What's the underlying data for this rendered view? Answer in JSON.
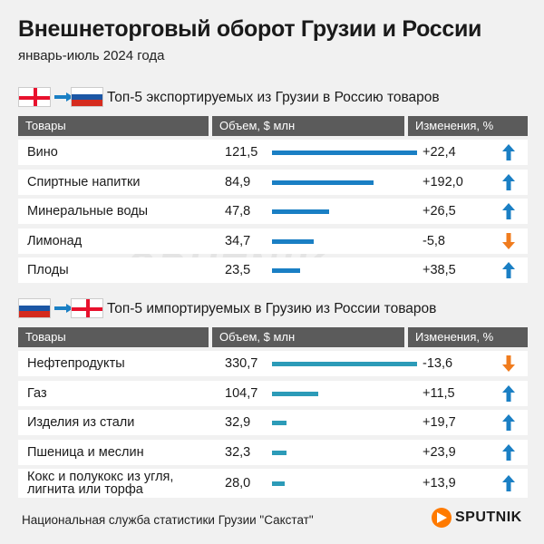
{
  "title": "Внешнеторговый оборот Грузии и России",
  "subtitle": "январь-июль 2024 года",
  "watermark": "SPUTNIK",
  "colors": {
    "bar": "#1a7fc4",
    "bar_import": "#2c9bb8",
    "up": "#1a7fc4",
    "down": "#f07c1e",
    "header": "#5b5b5b"
  },
  "chart_data": [
    {
      "type": "table",
      "title": "Топ-5 экспортируемых из Грузии в Россию товаров",
      "flags": [
        "georgia-flag",
        "russia-flag"
      ],
      "columns": [
        "Товары",
        "Объем, $ млн",
        "Изменения, %"
      ],
      "categories": [
        "Вино",
        "Спиртные напитки",
        "Минеральные воды",
        "Лимонад",
        "Плоды"
      ],
      "values": [
        121.5,
        84.9,
        47.8,
        34.7,
        23.5
      ],
      "value_labels": [
        "121,5",
        "84,9",
        "47,8",
        "34,7",
        "23,5"
      ],
      "changes": [
        22.4,
        192.0,
        26.5,
        -5.8,
        38.5
      ],
      "change_labels": [
        "+22,4",
        "+192,0",
        "+26,5",
        "-5,8",
        "+38,5"
      ]
    },
    {
      "type": "table",
      "title": "Топ-5 импортируемых в Грузию из России товаров",
      "flags": [
        "russia-flag",
        "georgia-flag"
      ],
      "columns": [
        "Товары",
        "Объем, $ млн",
        "Изменения, %"
      ],
      "categories": [
        "Нефтепродукты",
        "Газ",
        "Изделия из стали",
        "Пшеница и меслин",
        "Кокс и полукокс из угля, лигнита или торфа"
      ],
      "values": [
        330.7,
        104.7,
        32.9,
        32.3,
        28.0
      ],
      "value_labels": [
        "330,7",
        "104,7",
        "32,9",
        "32,3",
        "28,0"
      ],
      "changes": [
        -13.6,
        11.5,
        19.7,
        23.9,
        13.9
      ],
      "change_labels": [
        "-13,6",
        "+11,5",
        "+19,7",
        "+23,9",
        "+13,9"
      ]
    }
  ],
  "footer": "Национальная служба статистики Грузии \"Сакстат\"",
  "logo": "SPUTNIK"
}
